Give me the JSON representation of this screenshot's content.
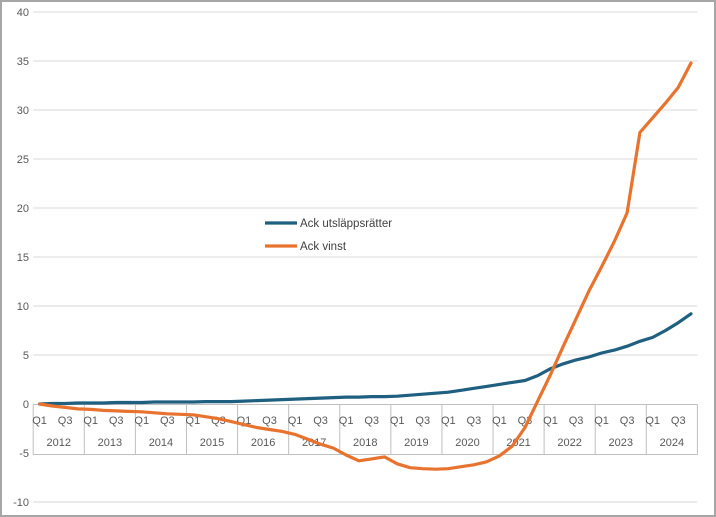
{
  "window": {
    "background": "#ffffff",
    "border_color": "#a6a6a6"
  },
  "colors": {
    "gridline": "#d9d9d9",
    "axis_box_border": "#bfbfbf",
    "axis_label_text": "#595959",
    "legend_text": "#404040",
    "series_blue": "#1f5f7f",
    "series_orange": "#e8732e"
  },
  "chart_data": {
    "type": "line",
    "title": "",
    "xlabel": "",
    "ylabel": "",
    "ylim": [
      -10,
      40
    ],
    "y_step": 5,
    "grid": true,
    "legend_position": "center",
    "x_years": [
      2012,
      2013,
      2014,
      2015,
      2016,
      2017,
      2018,
      2019,
      2020,
      2021,
      2022,
      2023,
      2024
    ],
    "x_quarter_ticks_shown": [
      "Q1",
      "Q3"
    ],
    "categories": [
      "Q1 2012",
      "Q2 2012",
      "Q3 2012",
      "Q4 2012",
      "Q1 2013",
      "Q2 2013",
      "Q3 2013",
      "Q4 2013",
      "Q1 2014",
      "Q2 2014",
      "Q3 2014",
      "Q4 2014",
      "Q1 2015",
      "Q2 2015",
      "Q3 2015",
      "Q4 2015",
      "Q1 2016",
      "Q2 2016",
      "Q3 2016",
      "Q4 2016",
      "Q1 2017",
      "Q2 2017",
      "Q3 2017",
      "Q4 2017",
      "Q1 2018",
      "Q2 2018",
      "Q3 2018",
      "Q4 2018",
      "Q1 2019",
      "Q2 2019",
      "Q3 2019",
      "Q4 2019",
      "Q1 2020",
      "Q2 2020",
      "Q3 2020",
      "Q4 2020",
      "Q1 2021",
      "Q2 2021",
      "Q3 2021",
      "Q4 2021",
      "Q1 2022",
      "Q2 2022",
      "Q3 2022",
      "Q4 2022",
      "Q1 2023",
      "Q2 2023",
      "Q3 2023",
      "Q4 2023",
      "Q1 2024",
      "Q2 2024",
      "Q3 2024",
      "Q4 2024"
    ],
    "series": [
      {
        "name": "Ack utsläppsrätter",
        "color": "#1f5f7f",
        "values": [
          0.0,
          0.05,
          0.05,
          0.1,
          0.1,
          0.1,
          0.15,
          0.15,
          0.15,
          0.2,
          0.2,
          0.2,
          0.2,
          0.25,
          0.25,
          0.25,
          0.3,
          0.35,
          0.4,
          0.45,
          0.5,
          0.55,
          0.6,
          0.65,
          0.7,
          0.7,
          0.75,
          0.75,
          0.8,
          0.9,
          1.0,
          1.1,
          1.2,
          1.4,
          1.6,
          1.8,
          2.0,
          2.2,
          2.4,
          2.9,
          3.6,
          4.1,
          4.5,
          4.8,
          5.2,
          5.5,
          5.9,
          6.4,
          6.8,
          7.5,
          8.3,
          9.2
        ]
      },
      {
        "name": "Ack vinst",
        "color": "#e8732e",
        "values": [
          0.0,
          -0.2,
          -0.35,
          -0.5,
          -0.55,
          -0.65,
          -0.7,
          -0.75,
          -0.8,
          -0.9,
          -1.0,
          -1.05,
          -1.1,
          -1.3,
          -1.5,
          -1.8,
          -2.1,
          -2.4,
          -2.6,
          -2.8,
          -3.1,
          -3.6,
          -4.1,
          -4.5,
          -5.2,
          -5.8,
          -5.6,
          -5.4,
          -6.1,
          -6.5,
          -6.6,
          -6.65,
          -6.6,
          -6.4,
          -6.2,
          -5.9,
          -5.3,
          -4.3,
          -2.4,
          0.3,
          3.0,
          5.9,
          8.7,
          11.5,
          14.0,
          16.6,
          19.5,
          27.7,
          29.2,
          30.7,
          32.3,
          34.8
        ]
      }
    ]
  }
}
